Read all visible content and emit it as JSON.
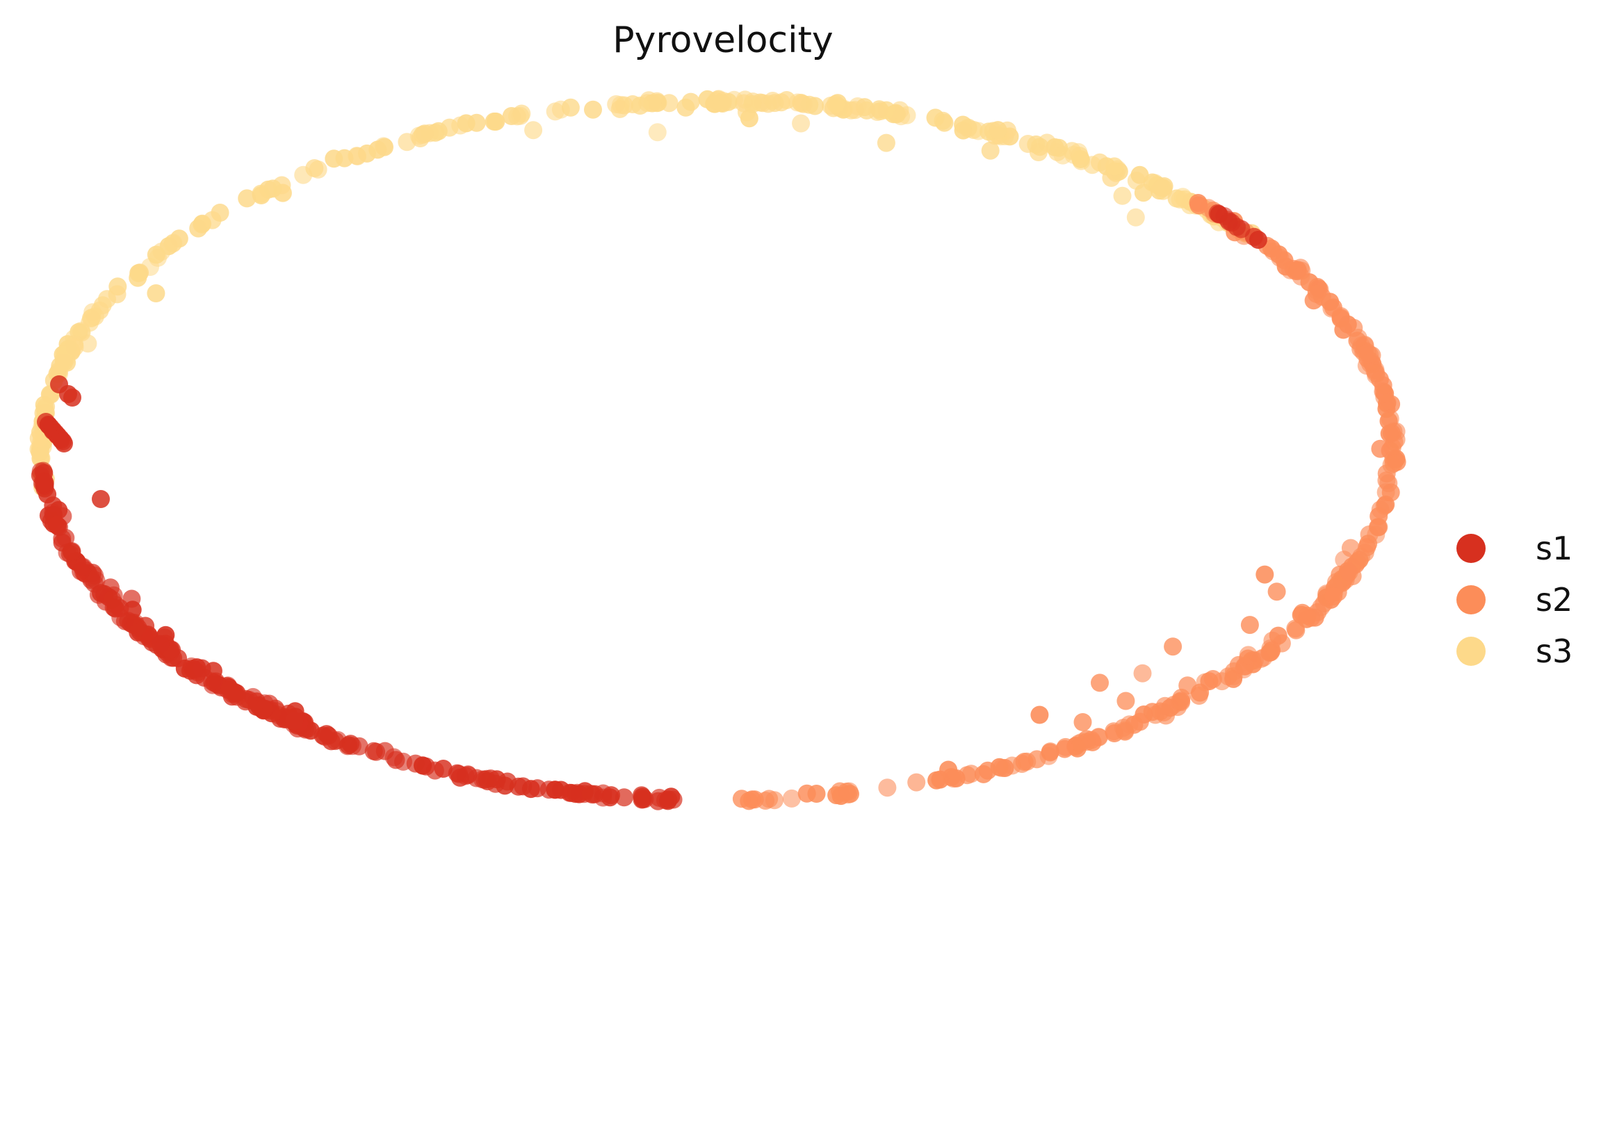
{
  "chart_data": {
    "type": "scatter",
    "title": "Pyrovelocity",
    "xlabel": "",
    "ylabel": "",
    "axes_visible": false,
    "grid": false,
    "legend_position": "right",
    "series": [
      {
        "name": "s1",
        "color": "#d7301f"
      },
      {
        "name": "s2",
        "color": "#fc8d59"
      },
      {
        "name": "s3",
        "color": "#fdd98a"
      }
    ],
    "layout_note": "cells arranged on an elliptical ring; s3 along the top/left arc, s2 along the right/lower-right arc, s1 along the left/bottom arc"
  },
  "legend": {
    "items": [
      {
        "label": "s1",
        "color": "#d7301f"
      },
      {
        "label": "s2",
        "color": "#fc8d59"
      },
      {
        "label": "s3",
        "color": "#fdd98a"
      }
    ]
  }
}
